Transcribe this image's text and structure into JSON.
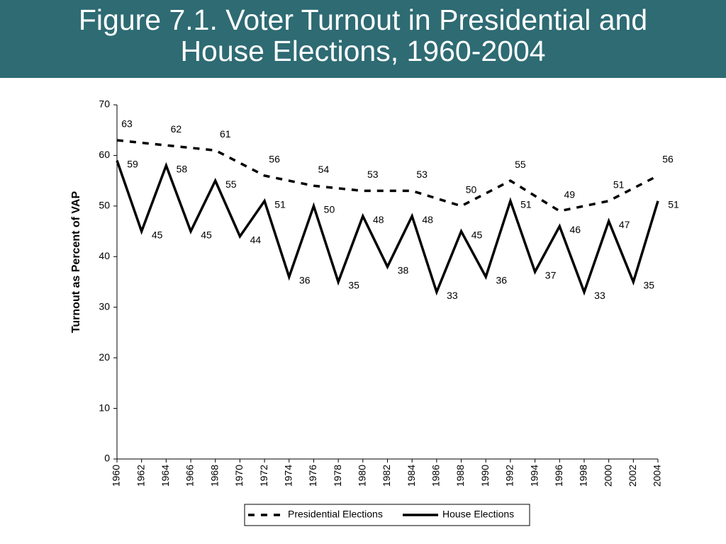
{
  "chart_data": {
    "type": "line",
    "title": "Figure 7.1. Voter Turnout in Presidential and House Elections, 1960-2004",
    "y_label": "Turnout as Percent of VAP",
    "xlim": [
      1960,
      2004
    ],
    "xticks": [
      1960,
      1962,
      1964,
      1966,
      1968,
      1970,
      1972,
      1974,
      1976,
      1978,
      1980,
      1982,
      1984,
      1986,
      1988,
      1990,
      1992,
      1994,
      1996,
      1998,
      2000,
      2002,
      2004
    ],
    "ylim": [
      0,
      70
    ],
    "yticks": [
      0,
      10,
      20,
      30,
      40,
      50,
      60,
      70
    ],
    "grid": false,
    "legend": "bottom",
    "series": [
      {
        "name": "Presidential Elections",
        "color": "#000000",
        "dash": true,
        "x": [
          1960,
          1964,
          1968,
          1972,
          1976,
          1980,
          1984,
          1988,
          1992,
          1996,
          2000,
          2004
        ],
        "values": [
          63,
          62,
          61,
          56,
          54,
          53,
          53,
          50,
          55,
          49,
          51,
          56
        ]
      },
      {
        "name": "House Elections",
        "color": "#000000",
        "dash": false,
        "x": [
          1960,
          1962,
          1964,
          1966,
          1968,
          1970,
          1972,
          1974,
          1976,
          1978,
          1980,
          1982,
          1984,
          1986,
          1988,
          1990,
          1992,
          1994,
          1996,
          1998,
          2000,
          2002,
          2004
        ],
        "values": [
          59,
          45,
          58,
          45,
          55,
          44,
          51,
          36,
          50,
          35,
          48,
          38,
          48,
          33,
          45,
          36,
          51,
          37,
          46,
          33,
          47,
          35,
          51
        ]
      }
    ]
  }
}
